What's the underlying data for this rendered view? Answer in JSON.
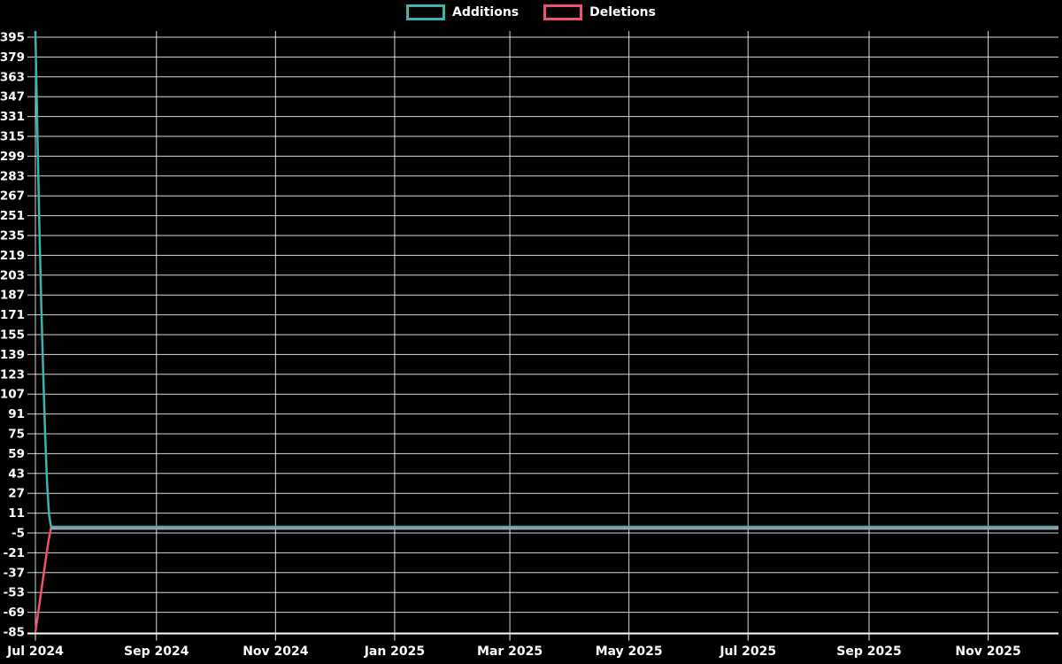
{
  "legend": {
    "items": [
      {
        "label": "Additions",
        "color": "#3ab5ae"
      },
      {
        "label": "Deletions",
        "color": "#f1506f"
      }
    ]
  },
  "chart_data": {
    "type": "line",
    "title": "",
    "xlabel": "",
    "ylabel": "",
    "background_color": "#000000",
    "grid": true,
    "grid_color": "#ffffff",
    "axis_color": "#ffffff",
    "axis_text_color": "#ffffff",
    "overlap_line_color": "#8ba6b7",
    "legend_position": "top-center",
    "x_axis": {
      "start_date": "2024-07-01",
      "end_date": "2025-12-07",
      "ticks": [
        {
          "label": "Jul 2024",
          "date": "2024-07-01"
        },
        {
          "label": "Sep 2024",
          "date": "2024-09-01"
        },
        {
          "label": "Nov 2024",
          "date": "2024-11-01"
        },
        {
          "label": "Jan 2025",
          "date": "2025-01-01"
        },
        {
          "label": "Mar 2025",
          "date": "2025-03-01"
        },
        {
          "label": "May 2025",
          "date": "2025-05-01"
        },
        {
          "label": "Jul 2025",
          "date": "2025-07-01"
        },
        {
          "label": "Sep 2025",
          "date": "2025-09-01"
        },
        {
          "label": "Nov 2025",
          "date": "2025-11-01"
        }
      ]
    },
    "y_axis": {
      "min": -85,
      "max": 400,
      "step": 16,
      "tick_values": [
        395,
        379,
        363,
        347,
        331,
        315,
        299,
        283,
        267,
        251,
        235,
        219,
        203,
        187,
        171,
        155,
        139,
        123,
        107,
        91,
        75,
        59,
        43,
        27,
        11,
        -5,
        -21,
        -37,
        -53,
        -69,
        -85
      ]
    },
    "series": [
      {
        "name": "Additions",
        "color": "#3ab5ae",
        "points": [
          [
            "2024-07-01",
            400
          ],
          [
            "2024-07-02",
            320
          ],
          [
            "2024-07-03",
            245
          ],
          [
            "2024-07-04",
            180
          ],
          [
            "2024-07-05",
            125
          ],
          [
            "2024-07-06",
            75
          ],
          [
            "2024-07-07",
            35
          ],
          [
            "2024-07-08",
            10
          ],
          [
            "2024-07-09",
            0
          ],
          [
            "2025-12-07",
            0
          ]
        ]
      },
      {
        "name": "Deletions",
        "color": "#f1506f",
        "points": [
          [
            "2024-07-01",
            -85
          ],
          [
            "2024-07-02",
            -74
          ],
          [
            "2024-07-03",
            -63
          ],
          [
            "2024-07-04",
            -52
          ],
          [
            "2024-07-05",
            -41
          ],
          [
            "2024-07-06",
            -30
          ],
          [
            "2024-07-07",
            -19
          ],
          [
            "2024-07-08",
            -9
          ],
          [
            "2024-07-09",
            -1
          ],
          [
            "2025-12-07",
            -1
          ]
        ]
      }
    ],
    "flat_overlap": {
      "from_date": "2024-07-09",
      "to_date": "2025-12-07",
      "value": -1
    }
  }
}
